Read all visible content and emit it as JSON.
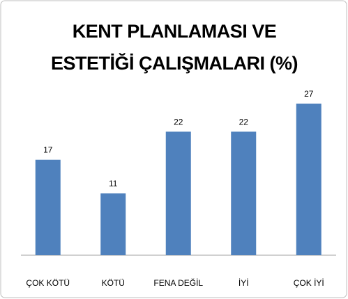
{
  "chart_data": {
    "type": "bar",
    "title": "KENT PLANLAMASI VE ESTETİĞİ ÇALIŞMALARI (%)",
    "categories": [
      "ÇOK KÖTÜ",
      "KÖTÜ",
      "FENA DEĞİL",
      "İYİ",
      "ÇOK İYİ"
    ],
    "values": [
      17,
      11,
      22,
      22,
      27
    ],
    "color": "#4f81bd"
  }
}
